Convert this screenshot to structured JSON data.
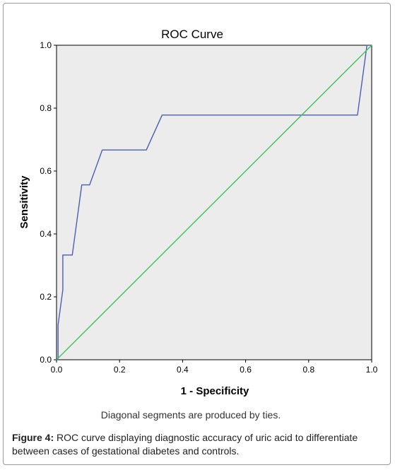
{
  "figure": {
    "caption_label": "Figure 4:",
    "caption_text": " ROC curve displaying diagnostic accuracy of uric acid to differentiate between cases of gestational diabetes and controls."
  },
  "chart_data": {
    "type": "line",
    "title": "ROC Curve",
    "xlabel": "1 - Specificity",
    "ylabel": "Sensitivity",
    "footnote": "Diagonal segments are produced by ties.",
    "xlim": [
      0.0,
      1.0
    ],
    "ylim": [
      0.0,
      1.0
    ],
    "xticks": [
      "0.0",
      "0.2",
      "0.4",
      "0.6",
      "0.8",
      "1.0"
    ],
    "yticks": [
      "0.0",
      "0.2",
      "0.4",
      "0.6",
      "0.8",
      "1.0"
    ],
    "grid": false,
    "plot_background": "#ececec",
    "series": [
      {
        "color": "#4a5fb4",
        "x": [
          0.0,
          0.005,
          0.005,
          0.02,
          0.02,
          0.05,
          0.05,
          0.08,
          0.08,
          0.105,
          0.105,
          0.145,
          0.145,
          0.285,
          0.285,
          0.335,
          0.335,
          0.955,
          0.955,
          0.985,
          0.985,
          1.0
        ],
        "y": [
          0.0,
          0.0,
          0.111,
          0.222,
          0.333,
          0.333,
          0.333,
          0.556,
          0.556,
          0.556,
          0.556,
          0.667,
          0.667,
          0.667,
          0.667,
          0.778,
          0.778,
          0.778,
          0.778,
          1.0,
          1.0,
          1.0
        ]
      },
      {
        "color": "#3fc35a",
        "x": [
          0.0,
          1.0
        ],
        "y": [
          0.0,
          1.0
        ]
      }
    ]
  }
}
